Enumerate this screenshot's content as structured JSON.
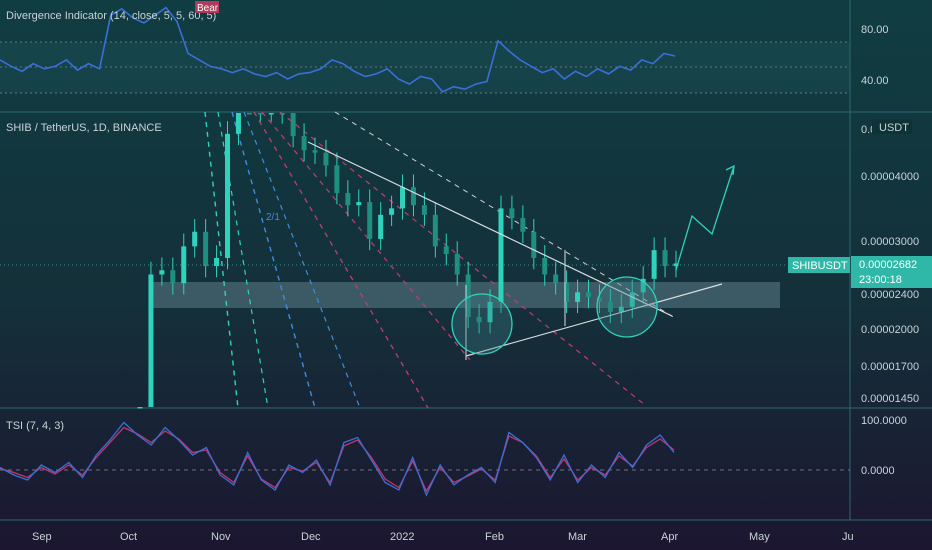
{
  "colors": {
    "background_top": "#103d42",
    "background_bottom": "#1a1630",
    "divider": "#2a6a70",
    "text": "#c8d3d6",
    "candle": "#2fd3bc",
    "rsi_line": "#3a6fd8",
    "tsi_line": "#3a6fd8",
    "tsi_signal": "#c2366a",
    "support_band": "#5d7e88",
    "trend_line": "#d8dde0",
    "price_tag": "#2fb8a8",
    "bear_tag": "#b03a5c",
    "fib_blue": "#3d8de0",
    "fib_green": "#2fd3bc",
    "fib_red": "#c23e6a",
    "fib_white": "#d0d0d0"
  },
  "top_panel": {
    "title": "Divergence Indicator (14, close, 5, 5, 60, 5)",
    "bear_label": "Bear",
    "axis_labels": [
      "80.00",
      "40.00"
    ]
  },
  "main_panel": {
    "title": "SHIB / TetherUS, 1D, BINANCE",
    "currency": "USDT",
    "axis_labels": [
      "0.0",
      "0.00004000",
      "0.00003000",
      "0.00002682",
      "0.00002400",
      "0.00002000",
      "0.00001700",
      "0.00001450"
    ],
    "fib_label": "2/1",
    "symbol_tag": "SHIBUSDT",
    "price_tag": "0.00002682",
    "countdown": "23:00:18"
  },
  "bottom_panel": {
    "title": "TSI (7, 4, 3)",
    "axis_labels": [
      "100.0000",
      "0.0000"
    ]
  },
  "time_axis": {
    "labels": [
      "Sep",
      "Oct",
      "Nov",
      "Dec",
      "2022",
      "Feb",
      "Mar",
      "Apr",
      "May",
      "Ju"
    ]
  },
  "chart_data": [
    {
      "type": "candlestick",
      "title": "SHIB / TetherUS, 1D, BINANCE",
      "y_scale": "log",
      "y_ticks": [
        4e-05,
        3e-05,
        2.682e-05,
        2.4e-05,
        2e-05,
        1.7e-05,
        1.45e-05
      ],
      "x_ticks": [
        "Sep",
        "Oct",
        "Nov",
        "Dec",
        "2022",
        "Feb",
        "Mar",
        "Apr",
        "May",
        "Ju"
      ],
      "closes_approx": [
        1.25e-05,
        2.55e-05,
        2.6e-05,
        2.45e-05,
        2.9e-05,
        3.1e-05,
        2.65e-05,
        2.75e-05,
        4.85e-05,
        8e-05,
        5.6e-05,
        5.4e-05,
        5.45e-05,
        5.35e-05,
        4.8e-05,
        4.5e-05,
        4.45e-05,
        4.2e-05,
        3.7e-05,
        3.5e-05,
        3.55e-05,
        3e-05,
        3.35e-05,
        3.45e-05,
        3.8e-05,
        3.5e-05,
        3.35e-05,
        2.9e-05,
        2.8e-05,
        2.55e-05,
        2.1e-05,
        2.05e-05,
        2.25e-05,
        3.45e-05,
        3.3e-05,
        3.1e-05,
        2.75e-05,
        2.55e-05,
        2.45e-05,
        2.25e-05,
        2.35e-05,
        2.3e-05,
        2.25e-05,
        2.15e-05,
        2.2e-05,
        2.35e-05,
        2.5e-05,
        2.85e-05,
        2.65e-05,
        2.682e-05
      ],
      "last_price": 2.682e-05,
      "support_zone": [
        2.22e-05,
        2.5e-05
      ]
    },
    {
      "type": "line",
      "title": "Divergence Indicator (14, close, 5, 5, 60, 5)",
      "y_ticks": [
        80,
        40
      ],
      "series": [
        {
          "values": [
            55,
            50,
            46,
            52,
            48,
            50,
            55,
            47,
            52,
            48,
            90,
            95,
            88,
            84,
            90,
            96,
            85,
            60,
            55,
            50,
            48,
            45,
            48,
            44,
            42,
            45,
            40,
            44,
            45,
            48,
            55,
            52,
            46,
            42,
            44,
            48,
            40,
            36,
            42,
            40,
            30,
            34,
            32,
            36,
            38,
            70,
            62,
            55,
            50,
            45,
            48,
            40,
            46,
            42,
            48,
            44,
            50,
            47,
            55,
            52,
            60,
            58
          ]
        }
      ],
      "markers": [
        "Bear"
      ]
    },
    {
      "type": "line",
      "title": "TSI (7, 4, 3)",
      "y_ticks": [
        100,
        0
      ],
      "series": [
        {
          "values": [
            5,
            -10,
            -20,
            10,
            -5,
            15,
            -15,
            30,
            60,
            95,
            70,
            50,
            85,
            60,
            30,
            45,
            -10,
            -30,
            35,
            -20,
            -40,
            10,
            -5,
            20,
            -30,
            55,
            65,
            20,
            -25,
            -40,
            25,
            -50,
            10,
            -30,
            -10,
            5,
            -25,
            75,
            55,
            25,
            -20,
            30,
            -25,
            10,
            -15,
            35,
            5,
            50,
            70,
            35
          ]
        },
        {
          "values": [
            3,
            -5,
            -15,
            5,
            -8,
            10,
            -10,
            25,
            55,
            85,
            72,
            55,
            78,
            62,
            35,
            40,
            -5,
            -25,
            28,
            -18,
            -35,
            5,
            -2,
            15,
            -25,
            48,
            60,
            25,
            -18,
            -35,
            18,
            -42,
            5,
            -25,
            -12,
            2,
            -20,
            68,
            55,
            28,
            -15,
            22,
            -20,
            5,
            -10,
            28,
            8,
            45,
            62,
            40
          ]
        }
      ]
    }
  ]
}
